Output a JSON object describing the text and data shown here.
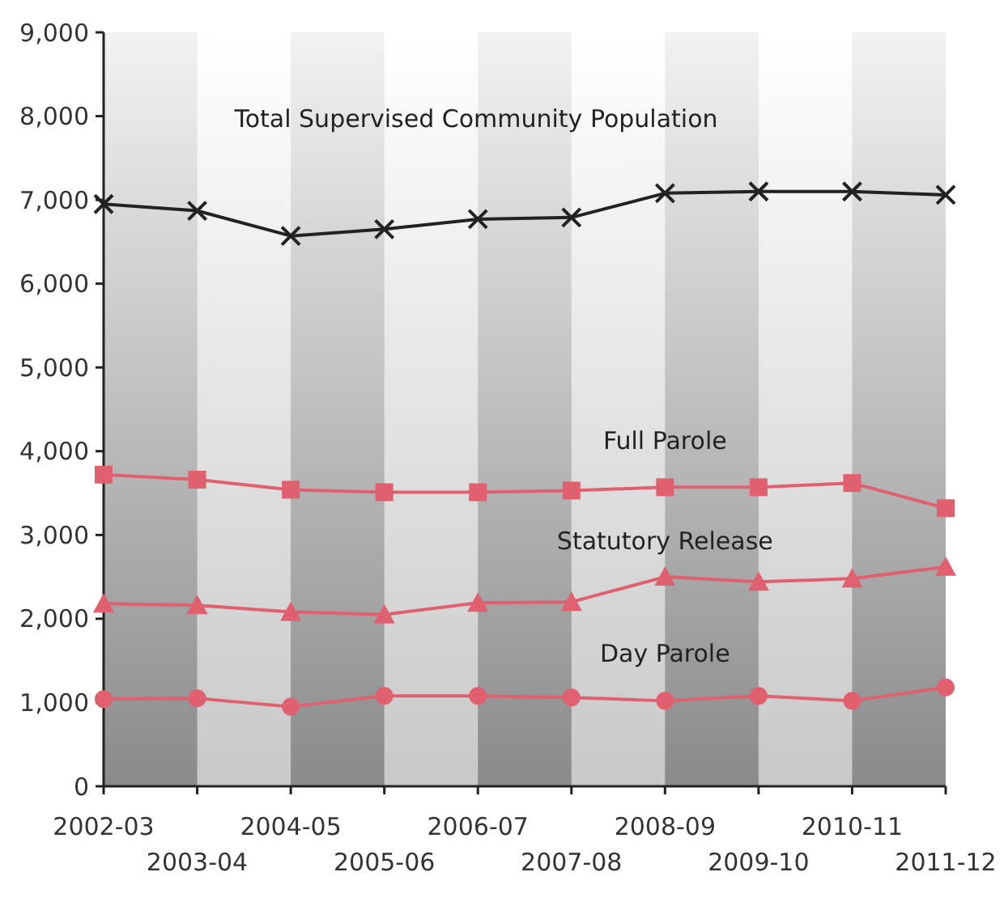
{
  "chart_data": {
    "type": "line",
    "categories": [
      "2002-03",
      "2003-04",
      "2004-05",
      "2005-06",
      "2006-07",
      "2007-08",
      "2008-09",
      "2009-10",
      "2010-11",
      "2011-12"
    ],
    "ylim": [
      0,
      9000
    ],
    "yticks": [
      {
        "value": 0,
        "label": "0"
      },
      {
        "value": 1000,
        "label": "1,000"
      },
      {
        "value": 2000,
        "label": "2,000"
      },
      {
        "value": 3000,
        "label": "3,000"
      },
      {
        "value": 4000,
        "label": "4,000"
      },
      {
        "value": 5000,
        "label": "5,000"
      },
      {
        "value": 6000,
        "label": "6,000"
      },
      {
        "value": 7000,
        "label": "7,000"
      },
      {
        "value": 8000,
        "label": "8,000"
      },
      {
        "value": 9000,
        "label": "9,000"
      }
    ],
    "grid": false,
    "legend": false,
    "line_style": "solid",
    "series": [
      {
        "name": "Total Supervised Community Population",
        "color": "#222222",
        "marker": "cross",
        "values": [
          6950,
          6870,
          6570,
          6650,
          6770,
          6790,
          7080,
          7100,
          7100,
          7060
        ]
      },
      {
        "name": "Full Parole",
        "color": "#e06070",
        "marker": "square",
        "values": [
          3720,
          3660,
          3540,
          3510,
          3510,
          3530,
          3570,
          3570,
          3620,
          3320
        ]
      },
      {
        "name": "Statutory Release",
        "color": "#e06070",
        "marker": "triangle",
        "values": [
          2180,
          2160,
          2080,
          2050,
          2190,
          2200,
          2500,
          2440,
          2480,
          2620
        ]
      },
      {
        "name": "Day Parole",
        "color": "#e06070",
        "marker": "circle",
        "values": [
          1040,
          1050,
          950,
          1080,
          1080,
          1060,
          1020,
          1080,
          1020,
          1180
        ]
      }
    ]
  }
}
